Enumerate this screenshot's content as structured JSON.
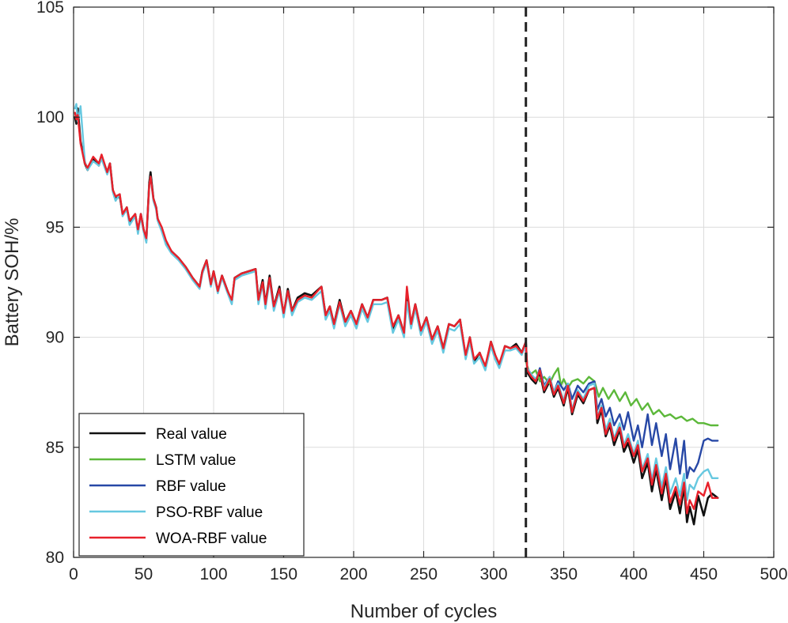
{
  "chart_data": {
    "type": "line",
    "title": "",
    "xlabel": "Number of cycles",
    "ylabel": "Battery SOH/%",
    "xlim": [
      0,
      500
    ],
    "ylim": [
      80,
      105
    ],
    "xticks": [
      0,
      50,
      100,
      150,
      200,
      250,
      300,
      350,
      400,
      450,
      500
    ],
    "yticks": [
      80,
      85,
      90,
      95,
      100,
      105
    ],
    "grid": true,
    "legend_position": "bottom-left",
    "divider_x": 323,
    "colors": {
      "real": "#111111",
      "lstm": "#5cb83a",
      "rbf": "#2748a6",
      "pso": "#66c8e0",
      "woa": "#e8212b",
      "divider": "#222222"
    },
    "series": [
      {
        "name": "Real value",
        "color": "#111111",
        "x": [
          1,
          2,
          3,
          5,
          8,
          10,
          14,
          18,
          20,
          24,
          26,
          28,
          30,
          33,
          35,
          38,
          40,
          44,
          46,
          48,
          50,
          52,
          54,
          55,
          57,
          59,
          60,
          63,
          66,
          70,
          75,
          80,
          85,
          90,
          92,
          95,
          98,
          100,
          103,
          106,
          110,
          113,
          115,
          120,
          125,
          130,
          132,
          135,
          137,
          140,
          143,
          147,
          150,
          153,
          156,
          160,
          165,
          170,
          177,
          180,
          183,
          186,
          190,
          194,
          198,
          202,
          206,
          210,
          214,
          220,
          224,
          228,
          232,
          236,
          238,
          241,
          244,
          248,
          252,
          256,
          260,
          264,
          268,
          272,
          276,
          280,
          283,
          286,
          290,
          294,
          298,
          301,
          304,
          308,
          312,
          316,
          320,
          323,
          324,
          327,
          330,
          333,
          336,
          340,
          343,
          346,
          350,
          353,
          356,
          360,
          364,
          368,
          372,
          374,
          377,
          380,
          383,
          386,
          390,
          393,
          396,
          400,
          403,
          406,
          410,
          413,
          416,
          420,
          423,
          426,
          430,
          433,
          436,
          438,
          440,
          443,
          446,
          450,
          453,
          456,
          460
        ],
        "values": [
          100.0,
          99.7,
          100.4,
          98.9,
          97.9,
          97.6,
          98.1,
          97.8,
          98.2,
          97.5,
          97.9,
          96.7,
          96.3,
          96.4,
          95.6,
          95.9,
          95.2,
          95.6,
          94.8,
          95.6,
          94.9,
          94.4,
          97.0,
          97.5,
          96.3,
          95.9,
          95.4,
          94.9,
          94.3,
          93.9,
          93.6,
          93.2,
          92.7,
          92.3,
          93.0,
          93.5,
          92.4,
          93.0,
          92.1,
          92.8,
          92.1,
          91.6,
          92.7,
          92.9,
          93.0,
          93.1,
          91.7,
          92.6,
          91.5,
          92.8,
          91.4,
          92.3,
          91.0,
          92.2,
          91.2,
          91.8,
          92.0,
          91.9,
          92.3,
          91.0,
          91.4,
          90.6,
          91.7,
          90.7,
          91.2,
          90.6,
          91.5,
          90.9,
          91.7,
          91.7,
          91.8,
          90.4,
          91.0,
          90.2,
          91.8,
          90.6,
          91.5,
          90.3,
          90.9,
          89.9,
          90.5,
          89.5,
          90.6,
          90.5,
          90.8,
          89.1,
          90.0,
          88.9,
          89.3,
          88.6,
          89.8,
          89.2,
          88.7,
          89.6,
          89.5,
          89.7,
          89.3,
          89.8,
          88.4,
          88.1,
          87.9,
          88.4,
          87.5,
          88.0,
          87.3,
          87.7,
          86.9,
          87.7,
          86.5,
          87.4,
          87.0,
          87.6,
          87.7,
          86.1,
          86.7,
          85.5,
          86.0,
          85.1,
          85.8,
          84.8,
          85.2,
          84.3,
          84.9,
          83.6,
          84.3,
          83.0,
          84.0,
          82.6,
          83.6,
          82.2,
          83.0,
          82.0,
          83.2,
          81.6,
          82.3,
          81.5,
          82.8,
          81.9,
          82.7,
          82.9,
          82.7
        ],
        "stroke_width": 2.6
      },
      {
        "name": "LSTM value",
        "color": "#5cb83a",
        "x": [
          323,
          326,
          330,
          333,
          336,
          340,
          343,
          346,
          348,
          350,
          353,
          356,
          360,
          364,
          368,
          372,
          375,
          378,
          382,
          386,
          390,
          394,
          398,
          402,
          406,
          410,
          414,
          418,
          422,
          426,
          430,
          434,
          438,
          442,
          446,
          450,
          455,
          460
        ],
        "values": [
          88.9,
          88.3,
          88.5,
          88.0,
          88.2,
          87.9,
          88.3,
          88.6,
          87.8,
          88.1,
          87.7,
          88.0,
          88.1,
          87.9,
          88.2,
          88.0,
          87.3,
          87.7,
          87.2,
          87.6,
          87.1,
          87.5,
          86.9,
          87.2,
          86.7,
          87.0,
          86.5,
          86.7,
          86.4,
          86.5,
          86.3,
          86.4,
          86.2,
          86.3,
          86.1,
          86.1,
          86.0,
          86.0
        ],
        "stroke_width": 2.4
      },
      {
        "name": "RBF value",
        "color": "#2748a6",
        "x": [
          323,
          324,
          327,
          330,
          333,
          336,
          340,
          343,
          346,
          350,
          353,
          356,
          360,
          364,
          368,
          372,
          374,
          377,
          380,
          383,
          386,
          390,
          393,
          396,
          400,
          403,
          406,
          410,
          413,
          416,
          420,
          423,
          426,
          430,
          433,
          436,
          438,
          440,
          443,
          446,
          450,
          453,
          456,
          460
        ],
        "values": [
          89.4,
          88.6,
          88.3,
          88.0,
          88.6,
          87.8,
          88.2,
          87.5,
          88.0,
          87.6,
          87.9,
          87.2,
          87.8,
          87.5,
          87.9,
          88.0,
          86.7,
          87.2,
          86.4,
          86.8,
          86.0,
          86.5,
          85.8,
          86.6,
          85.3,
          86.0,
          85.0,
          86.5,
          85.1,
          86.1,
          84.6,
          85.6,
          84.0,
          85.4,
          83.8,
          85.3,
          83.6,
          84.1,
          83.9,
          84.3,
          85.3,
          85.4,
          85.3,
          85.3
        ],
        "stroke_width": 2.4
      },
      {
        "name": "PSO-RBF value",
        "color": "#66c8e0",
        "x": [
          1,
          2,
          3,
          5,
          8,
          10,
          14,
          18,
          20,
          24,
          26,
          28,
          30,
          33,
          35,
          38,
          40,
          44,
          46,
          48,
          50,
          52,
          54,
          55,
          57,
          59,
          60,
          63,
          66,
          70,
          75,
          80,
          85,
          90,
          92,
          95,
          98,
          100,
          103,
          106,
          110,
          113,
          115,
          120,
          125,
          130,
          132,
          135,
          137,
          140,
          143,
          147,
          150,
          153,
          156,
          160,
          165,
          170,
          177,
          180,
          183,
          186,
          190,
          194,
          198,
          202,
          206,
          210,
          214,
          220,
          224,
          228,
          232,
          236,
          238,
          241,
          244,
          248,
          252,
          256,
          260,
          264,
          268,
          272,
          276,
          280,
          283,
          286,
          290,
          294,
          298,
          301,
          304,
          308,
          312,
          316,
          320,
          323,
          324,
          327,
          330,
          333,
          336,
          340,
          343,
          346,
          350,
          353,
          356,
          360,
          364,
          368,
          372,
          374,
          377,
          380,
          383,
          386,
          390,
          393,
          396,
          400,
          403,
          406,
          410,
          413,
          416,
          420,
          423,
          426,
          430,
          433,
          436,
          438,
          440,
          443,
          446,
          450,
          453,
          456,
          460
        ],
        "values": [
          100.4,
          100.6,
          99.8,
          100.5,
          98.0,
          97.6,
          98.0,
          97.8,
          98.1,
          97.4,
          97.8,
          96.6,
          96.2,
          96.5,
          95.5,
          95.8,
          95.1,
          95.5,
          94.7,
          95.5,
          94.8,
          94.3,
          96.9,
          97.3,
          96.2,
          95.8,
          95.3,
          94.8,
          94.2,
          93.8,
          93.5,
          93.1,
          92.6,
          92.2,
          92.9,
          93.4,
          92.3,
          92.9,
          92.0,
          92.7,
          92.0,
          91.5,
          92.6,
          92.8,
          92.9,
          93.0,
          91.5,
          92.4,
          91.3,
          92.6,
          91.2,
          92.1,
          90.9,
          92.0,
          91.0,
          91.6,
          91.8,
          91.7,
          92.1,
          90.8,
          91.2,
          90.4,
          91.5,
          90.5,
          91.0,
          90.4,
          91.3,
          90.7,
          91.5,
          91.5,
          91.6,
          90.2,
          90.8,
          90.0,
          91.6,
          90.4,
          91.3,
          90.1,
          90.7,
          89.7,
          90.3,
          89.3,
          90.4,
          90.3,
          90.6,
          89.0,
          89.8,
          88.8,
          89.1,
          88.5,
          89.6,
          89.0,
          88.6,
          89.4,
          89.4,
          89.5,
          89.2,
          89.7,
          88.6,
          88.3,
          88.1,
          88.5,
          87.7,
          88.2,
          87.5,
          87.9,
          87.1,
          87.9,
          86.7,
          87.6,
          87.2,
          87.8,
          87.9,
          86.4,
          86.9,
          85.8,
          86.3,
          85.4,
          86.1,
          85.1,
          85.6,
          84.7,
          85.3,
          84.0,
          84.7,
          83.5,
          84.5,
          83.2,
          84.1,
          82.9,
          83.6,
          82.8,
          83.8,
          82.6,
          83.3,
          83.1,
          83.6,
          83.9,
          84.0,
          83.6,
          83.6
        ],
        "stroke_width": 2.4
      },
      {
        "name": "WOA-RBF value",
        "color": "#e8212b",
        "x": [
          1,
          2,
          3,
          5,
          8,
          10,
          14,
          18,
          20,
          24,
          26,
          28,
          30,
          33,
          35,
          38,
          40,
          44,
          46,
          48,
          50,
          52,
          54,
          55,
          57,
          59,
          60,
          63,
          66,
          70,
          75,
          80,
          85,
          90,
          92,
          95,
          98,
          100,
          103,
          106,
          110,
          113,
          115,
          120,
          125,
          130,
          132,
          135,
          137,
          140,
          143,
          147,
          150,
          153,
          156,
          160,
          165,
          170,
          177,
          180,
          183,
          186,
          190,
          194,
          198,
          202,
          206,
          210,
          214,
          220,
          224,
          228,
          232,
          236,
          238,
          241,
          244,
          248,
          252,
          256,
          260,
          264,
          268,
          272,
          276,
          280,
          283,
          286,
          290,
          294,
          298,
          301,
          304,
          308,
          312,
          316,
          320,
          323,
          324,
          327,
          330,
          333,
          336,
          340,
          343,
          346,
          350,
          353,
          356,
          360,
          364,
          368,
          372,
          374,
          377,
          380,
          383,
          386,
          390,
          393,
          396,
          400,
          403,
          406,
          410,
          413,
          416,
          420,
          423,
          426,
          430,
          433,
          436,
          438,
          440,
          443,
          446,
          450,
          453,
          456,
          460
        ],
        "values": [
          100.2,
          99.9,
          100.1,
          98.8,
          97.9,
          97.7,
          98.2,
          97.9,
          98.3,
          97.5,
          97.9,
          96.7,
          96.4,
          96.5,
          95.6,
          95.9,
          95.3,
          95.6,
          94.9,
          95.6,
          94.9,
          94.5,
          96.9,
          97.3,
          96.3,
          95.9,
          95.4,
          95.0,
          94.4,
          93.9,
          93.6,
          93.2,
          92.7,
          92.3,
          93.0,
          93.5,
          92.4,
          93.0,
          92.1,
          92.8,
          92.1,
          91.7,
          92.7,
          92.9,
          93.0,
          93.1,
          91.7,
          92.5,
          91.5,
          92.7,
          91.4,
          92.2,
          91.1,
          92.1,
          91.2,
          91.7,
          91.9,
          91.8,
          92.3,
          91.0,
          91.4,
          90.6,
          91.6,
          90.7,
          91.2,
          90.6,
          91.5,
          90.9,
          91.7,
          91.7,
          91.8,
          90.5,
          91.0,
          90.2,
          92.3,
          90.6,
          91.5,
          90.3,
          90.9,
          89.9,
          90.5,
          89.5,
          90.6,
          90.5,
          90.8,
          89.2,
          90.0,
          89.0,
          89.3,
          88.7,
          89.8,
          89.2,
          88.8,
          89.6,
          89.5,
          89.6,
          89.3,
          89.8,
          88.5,
          88.2,
          88.0,
          88.5,
          87.6,
          88.1,
          87.4,
          87.8,
          87.0,
          87.8,
          86.6,
          87.5,
          87.1,
          87.6,
          87.7,
          86.3,
          86.8,
          85.6,
          86.1,
          85.3,
          85.9,
          85.0,
          85.4,
          84.6,
          85.1,
          83.9,
          84.5,
          83.3,
          84.2,
          82.9,
          83.8,
          82.5,
          83.2,
          82.4,
          83.4,
          82.0,
          82.6,
          82.2,
          83.0,
          82.8,
          83.4,
          82.7,
          82.7
        ],
        "stroke_width": 2.4
      }
    ]
  }
}
